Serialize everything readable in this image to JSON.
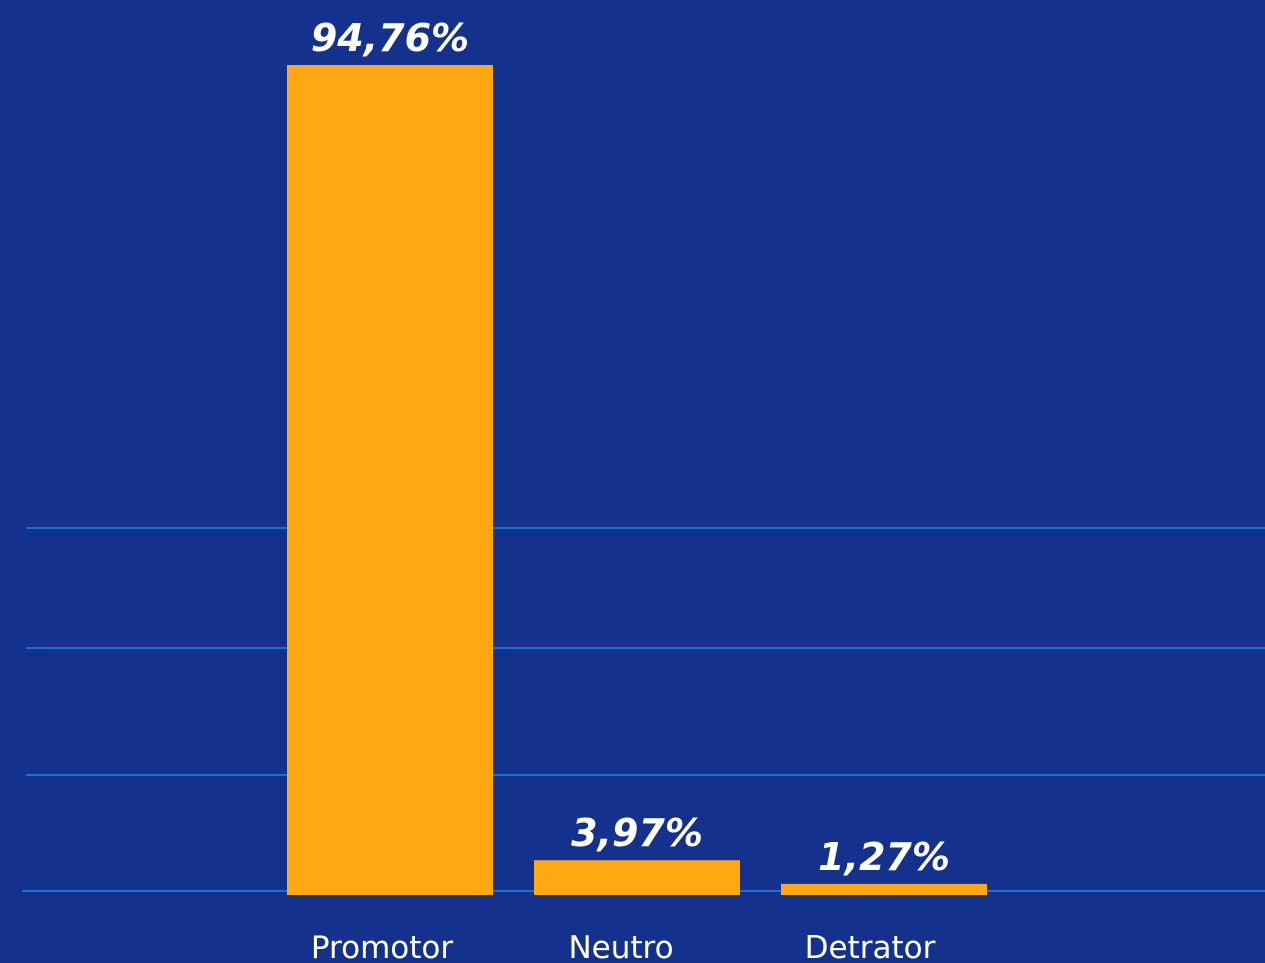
{
  "colors": {
    "background": "#15318e",
    "bar": "#ffa812",
    "gridline": "#1a6fcf"
  },
  "chart_data": {
    "type": "bar",
    "categories": [
      "Promotor",
      "Neutro",
      "Detrator"
    ],
    "values": [
      94.76,
      3.97,
      1.27
    ],
    "labels": [
      "94,76%",
      "3,97%",
      "1,27%"
    ],
    "title": "",
    "xlabel": "",
    "ylabel": "",
    "ylim": [
      0,
      100
    ],
    "grid": true
  }
}
